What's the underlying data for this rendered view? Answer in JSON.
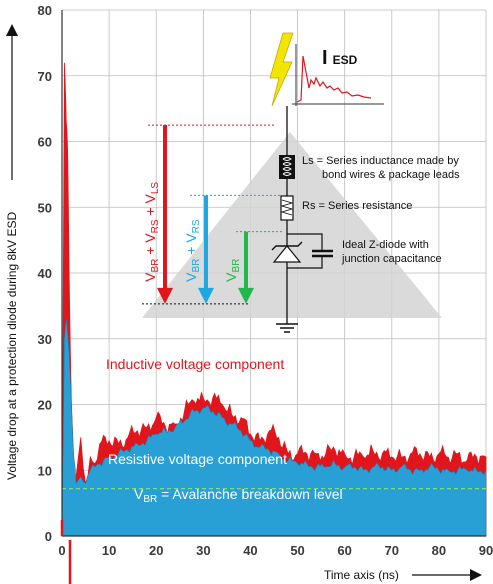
{
  "chart_data": {
    "type": "area",
    "xlabel": "Time axis (ns)",
    "ylabel": "Voltage drop at a protection diode during  8kV ESD",
    "xlim": [
      0,
      90
    ],
    "ylim": [
      0,
      80
    ],
    "x_ticks": [
      0,
      10,
      20,
      30,
      40,
      50,
      60,
      70,
      80,
      90
    ],
    "y_ticks": [
      0,
      10,
      20,
      30,
      40,
      50,
      60,
      70,
      80
    ],
    "grid": true,
    "vbr_level": 7.2,
    "series": [
      {
        "name": "Inductive voltage component",
        "color": "#e0161c",
        "x": [
          0,
          0.5,
          0.8,
          1.0,
          1.2,
          1.5,
          2,
          2.5,
          3,
          4,
          5,
          6,
          7,
          8,
          10,
          12,
          14,
          16,
          18,
          20,
          22,
          24,
          26,
          28,
          30,
          32,
          34,
          36,
          38,
          40,
          42,
          44,
          46,
          48,
          50,
          52,
          54,
          56,
          58,
          60,
          62,
          64,
          66,
          68,
          70,
          72,
          74,
          76,
          78,
          80,
          82,
          84,
          86,
          88,
          90
        ],
        "values": [
          0,
          72,
          66,
          62,
          58,
          40,
          20,
          10,
          9,
          15,
          8,
          12,
          11,
          14,
          14.5,
          14,
          15,
          16,
          16.5,
          18,
          16.5,
          17,
          19,
          20.5,
          21,
          21,
          20,
          18.5,
          18,
          15.5,
          14.5,
          16,
          15,
          12.5,
          12.5,
          12.5,
          12.5,
          12.5,
          13,
          12.5,
          12,
          12,
          13,
          12.5,
          12,
          12,
          12.5,
          12.5,
          12,
          12.5,
          12,
          12.5,
          11.5,
          12,
          12
        ]
      },
      {
        "name": "Resistive voltage component",
        "color": "#1ea8e0",
        "x": [
          0,
          0.5,
          1.0,
          1.5,
          2,
          2.5,
          3,
          4,
          5,
          6,
          7,
          8,
          10,
          12,
          14,
          16,
          18,
          20,
          22,
          24,
          26,
          28,
          30,
          32,
          34,
          36,
          38,
          40,
          42,
          44,
          46,
          48,
          50,
          52,
          54,
          56,
          58,
          60,
          62,
          64,
          66,
          68,
          70,
          72,
          74,
          76,
          78,
          80,
          82,
          84,
          86,
          88,
          90
        ],
        "values": [
          0,
          30,
          33,
          28,
          20,
          12,
          8,
          9,
          8,
          10,
          10.5,
          11,
          12,
          12.5,
          13,
          14,
          14.5,
          15.5,
          16,
          16.5,
          17.5,
          19,
          19.5,
          19,
          18,
          17,
          16,
          14.5,
          13.5,
          13,
          12.5,
          11.5,
          11,
          11,
          10.5,
          10.5,
          11,
          10.5,
          10.5,
          10,
          10.5,
          10.5,
          10,
          10.5,
          10,
          10,
          10.5,
          10,
          10,
          10,
          10,
          10,
          10
        ]
      },
      {
        "name": "V BR = Avalanche breakdown level",
        "color": "#3db03f",
        "x": [
          0,
          90
        ],
        "values": [
          7.2,
          7.2
        ]
      }
    ],
    "annotations": {
      "inductive": "Inductive voltage component",
      "resistive": "Resistive voltage component",
      "vbr_main": "V",
      "vbr_sub": "BR",
      "vbr_rest": " = Avalanche breakdown level"
    }
  },
  "circuit": {
    "esd_i": "I",
    "esd_sub": "ESD",
    "ls_line1": "Ls = Series inductance made by",
    "ls_line2": "bond wires & package leads",
    "rs": "Rs = Series resistance",
    "z_line1": "Ideal Z-diode with",
    "z_line2": "junction capacitance"
  },
  "arrows": {
    "red": {
      "color": "#e0161c",
      "parts": [
        "V",
        "BR",
        " + V",
        "RS",
        " + V",
        "LS"
      ],
      "top": 62.5
    },
    "blue": {
      "color": "#1ea8e0",
      "parts": [
        "V",
        "BR",
        " + V",
        "RS"
      ],
      "top": 51.8
    },
    "green": {
      "color": "#20b84a",
      "parts": [
        "V",
        "BR"
      ],
      "top": 46.3
    },
    "bottom": 35.3
  }
}
